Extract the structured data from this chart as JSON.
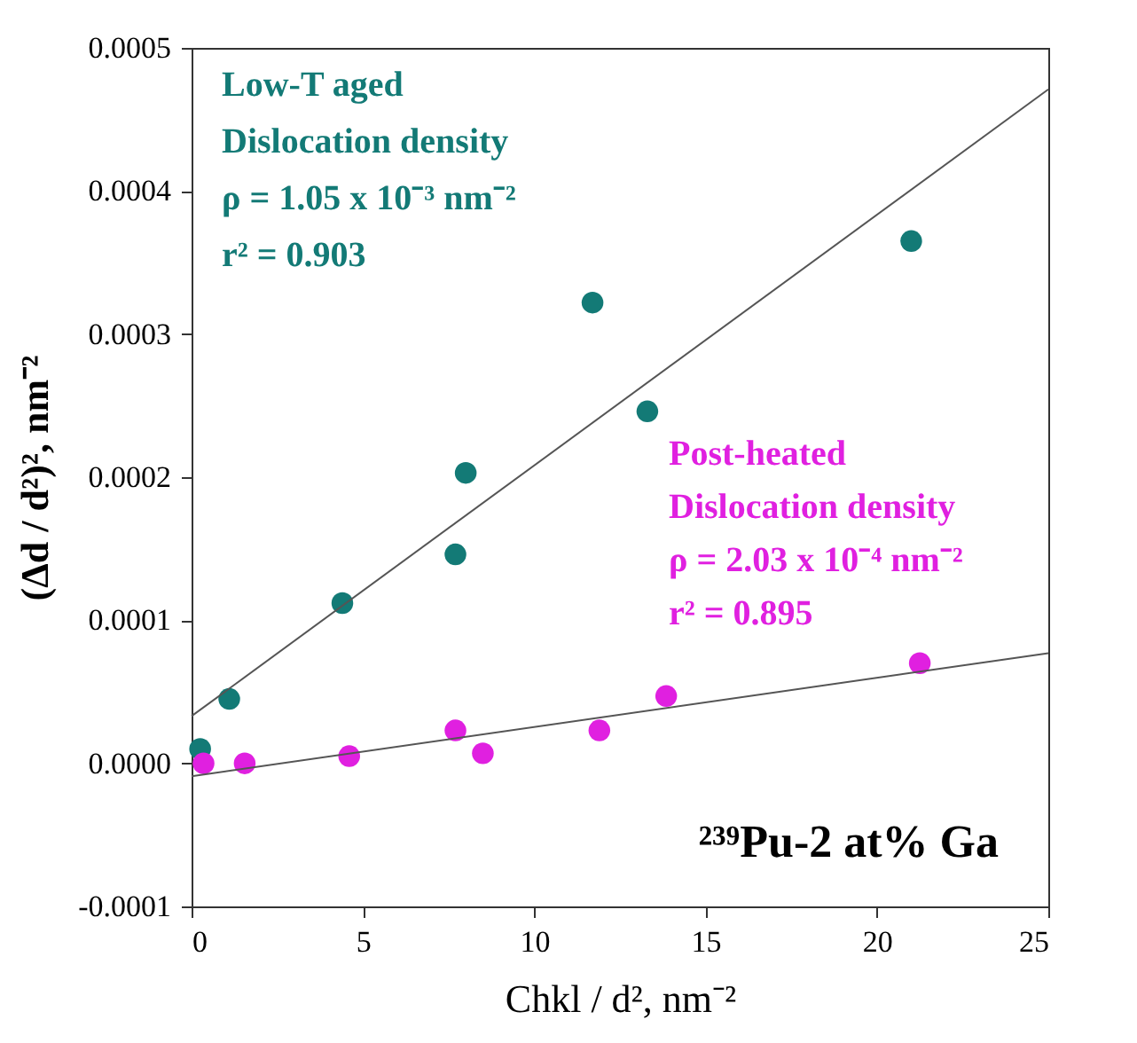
{
  "chart_data": {
    "type": "scatter",
    "xlabel": "Chkl / d², nm⁻²",
    "ylabel": "(Δd / d²)², nm⁻²",
    "xlim": [
      0,
      25
    ],
    "xticks": [
      0,
      5,
      10,
      15,
      20,
      25
    ],
    "ylim": [
      -0.0001,
      0.0005
    ],
    "yticks": [
      {
        "value": -0.0001,
        "label": "-0.0001"
      },
      {
        "value": 0,
        "label": "0.0000"
      },
      {
        "value": 0.0001,
        "label": "0.0001"
      },
      {
        "value": 0.0002,
        "label": "0.0002"
      },
      {
        "value": 0.0003,
        "label": "0.0003"
      },
      {
        "value": 0.0004,
        "label": "0.0004"
      },
      {
        "value": 0.0005,
        "label": "0.0005"
      }
    ],
    "grid": false,
    "marker": "circle",
    "series": [
      {
        "name": "Low-T aged",
        "color": "#137a76",
        "x": [
          0.25,
          1.1,
          4.4,
          7.7,
          8.0,
          11.7,
          13.3,
          21.0
        ],
        "values": [
          1e-05,
          4.5e-05,
          0.000112,
          0.000146,
          0.000203,
          0.000322,
          0.000246,
          0.000365
        ]
      },
      {
        "name": "Post-heated",
        "color": "#e020e0",
        "x": [
          0.35,
          1.55,
          4.6,
          7.7,
          8.5,
          11.9,
          13.85,
          21.25
        ],
        "values": [
          0.0,
          0.0,
          5e-06,
          2.3e-05,
          7e-06,
          2.3e-05,
          4.7e-05,
          7e-05
        ]
      },
      {
        "type": "line",
        "marker": "none",
        "color": "#555555",
        "x": [
          0,
          25
        ],
        "values": [
          3.3e-05,
          0.000471
        ]
      },
      {
        "type": "line",
        "marker": "none",
        "color": "#555555",
        "x": [
          0,
          25
        ],
        "values": [
          -9e-06,
          7.7e-05
        ]
      }
    ],
    "annotations": [
      "Dislocation density",
      "ρ = 1.05 x 10⁻³ nm⁻²",
      "r² = 0.903",
      "Dislocation density",
      "ρ = 2.03 x 10⁻⁴ nm⁻²",
      "r² = 0.895",
      "²³⁹Pu-2 at% Ga"
    ]
  }
}
